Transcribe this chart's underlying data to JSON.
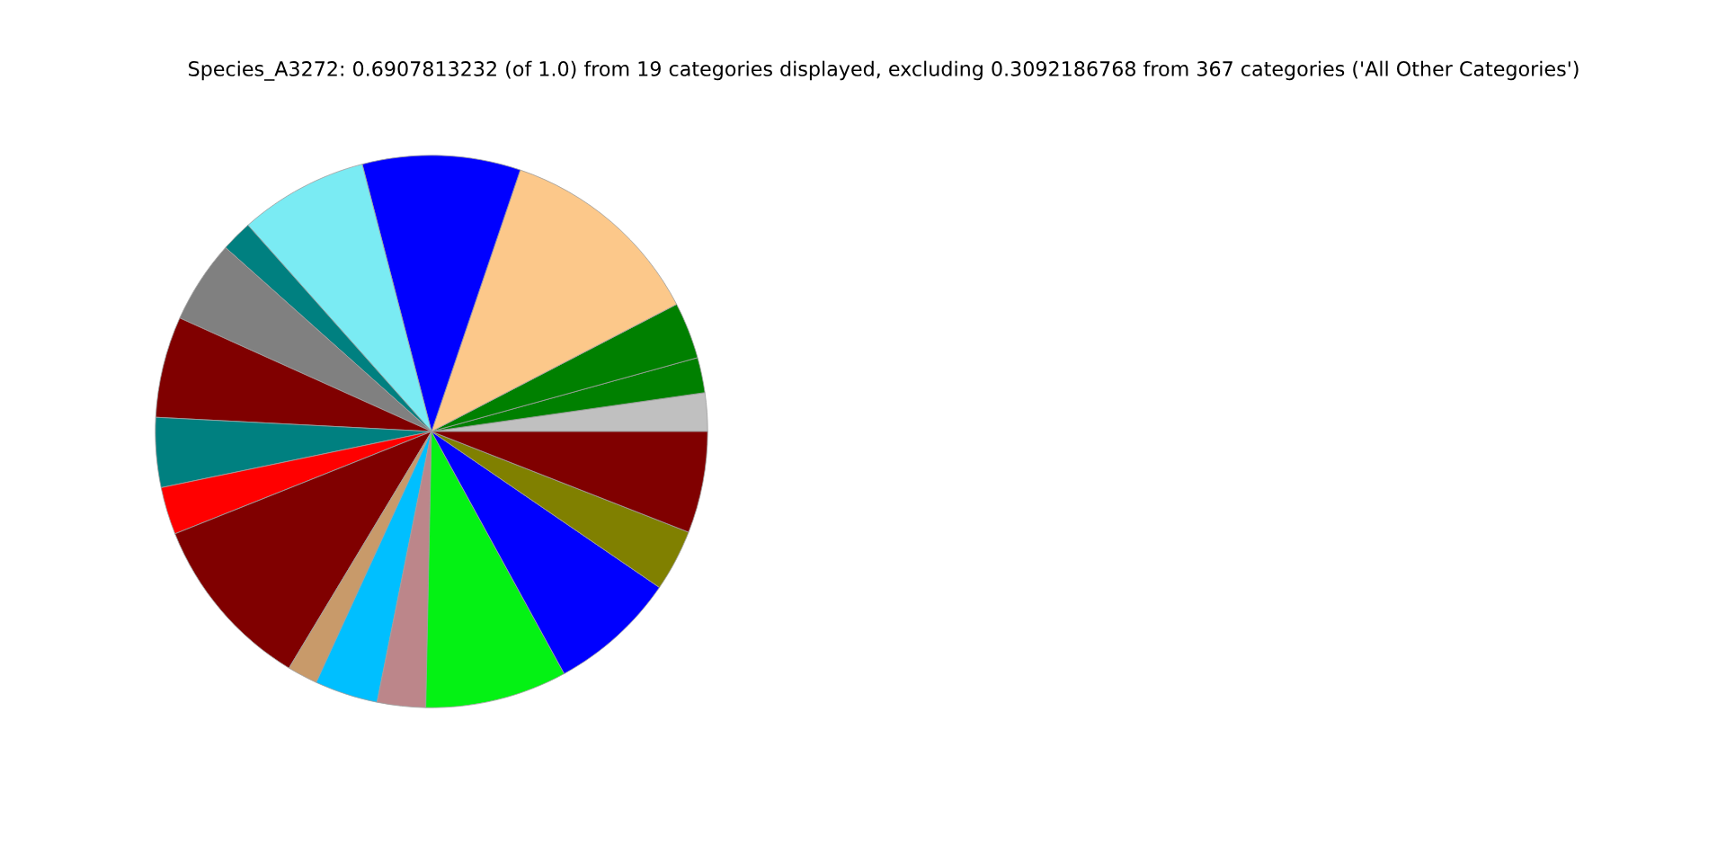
{
  "chart_data": {
    "type": "pie",
    "title": "Species_A3272: 0.6907813232 (of 1.0) from 19 categories displayed, excluding 0.3092186768 from 367 categories ('All Other Categories')",
    "categories": [
      null,
      null,
      null,
      null,
      null,
      null,
      null,
      null,
      null,
      null,
      null,
      null,
      null,
      null,
      null,
      null,
      null,
      null,
      null
    ],
    "values": [
      2.25,
      2.06,
      3.31,
      12.17,
      9.25,
      7.53,
      1.83,
      4.86,
      5.92,
      4.08,
      2.78,
      10.33,
      1.78,
      3.69,
      2.83,
      8.31,
      7.47,
      3.61,
      5.94
    ],
    "colors": [
      "#c0c0c0",
      "#008000",
      "#008000",
      "#fcc88a",
      "#0000ff",
      "#7aebf3",
      "#008080",
      "#808080",
      "#800000",
      "#008080",
      "#ff0000",
      "#800000",
      "#c89a6a",
      "#00bfff",
      "#bc868a",
      "#04f214",
      "#0000ff",
      "#808000",
      "#800000"
    ]
  }
}
